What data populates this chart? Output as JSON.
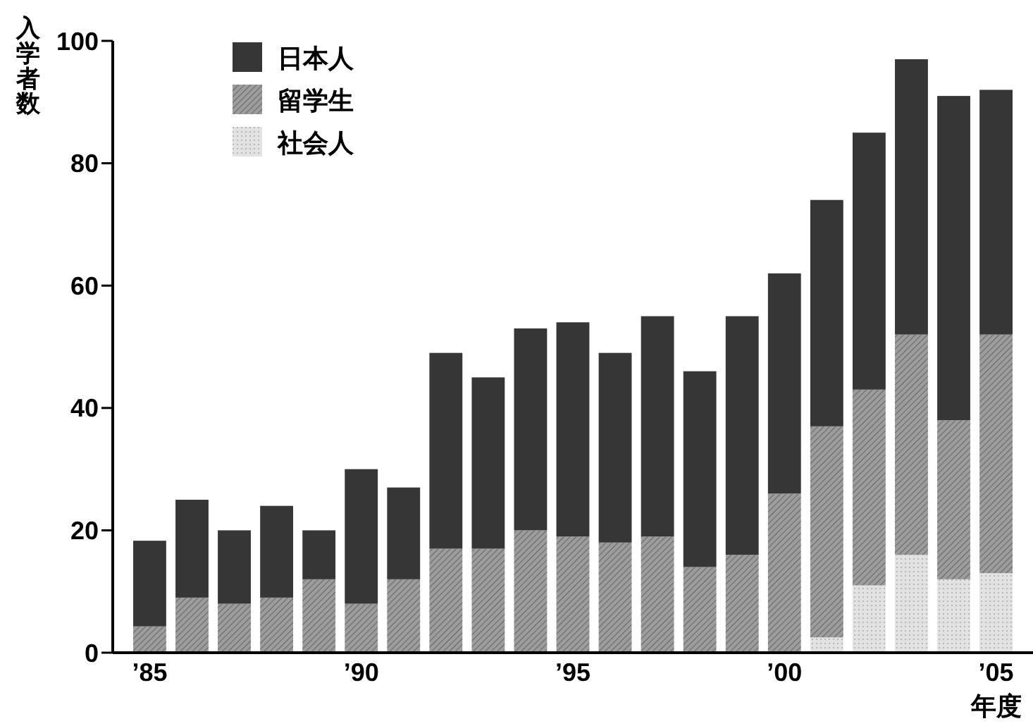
{
  "chart_data": {
    "type": "bar",
    "stacked": true,
    "ylabel": "入学者数",
    "xlabel": "年度",
    "categories": [
      "’85",
      null,
      null,
      null,
      null,
      "’90",
      null,
      null,
      null,
      null,
      "’95",
      null,
      null,
      null,
      null,
      "’00",
      null,
      null,
      null,
      null,
      "’05"
    ],
    "series": [
      {
        "name": "社会人",
        "color": "#e2e2e2",
        "values": [
          0,
          0,
          0,
          0,
          0,
          0,
          0,
          0,
          0,
          0,
          0,
          0,
          0,
          0,
          0,
          0,
          2.5,
          11,
          16,
          12,
          13
        ]
      },
      {
        "name": "留学生",
        "color": "#9c9c9c",
        "values": [
          4.3,
          9,
          8,
          9,
          12,
          8,
          12,
          17,
          17,
          20,
          19,
          18,
          19,
          14,
          16,
          26,
          34.5,
          32,
          36,
          26,
          39
        ]
      },
      {
        "name": "日本人",
        "color": "#363636",
        "values": [
          14,
          16,
          12,
          15,
          8,
          22,
          15,
          32,
          28,
          33,
          35,
          31,
          36,
          32,
          39,
          36,
          37,
          42,
          45,
          53,
          40
        ]
      }
    ],
    "ylim": [
      0,
      100
    ],
    "yticks": [
      0,
      20,
      40,
      60,
      80,
      100
    ],
    "legend": "top left"
  }
}
